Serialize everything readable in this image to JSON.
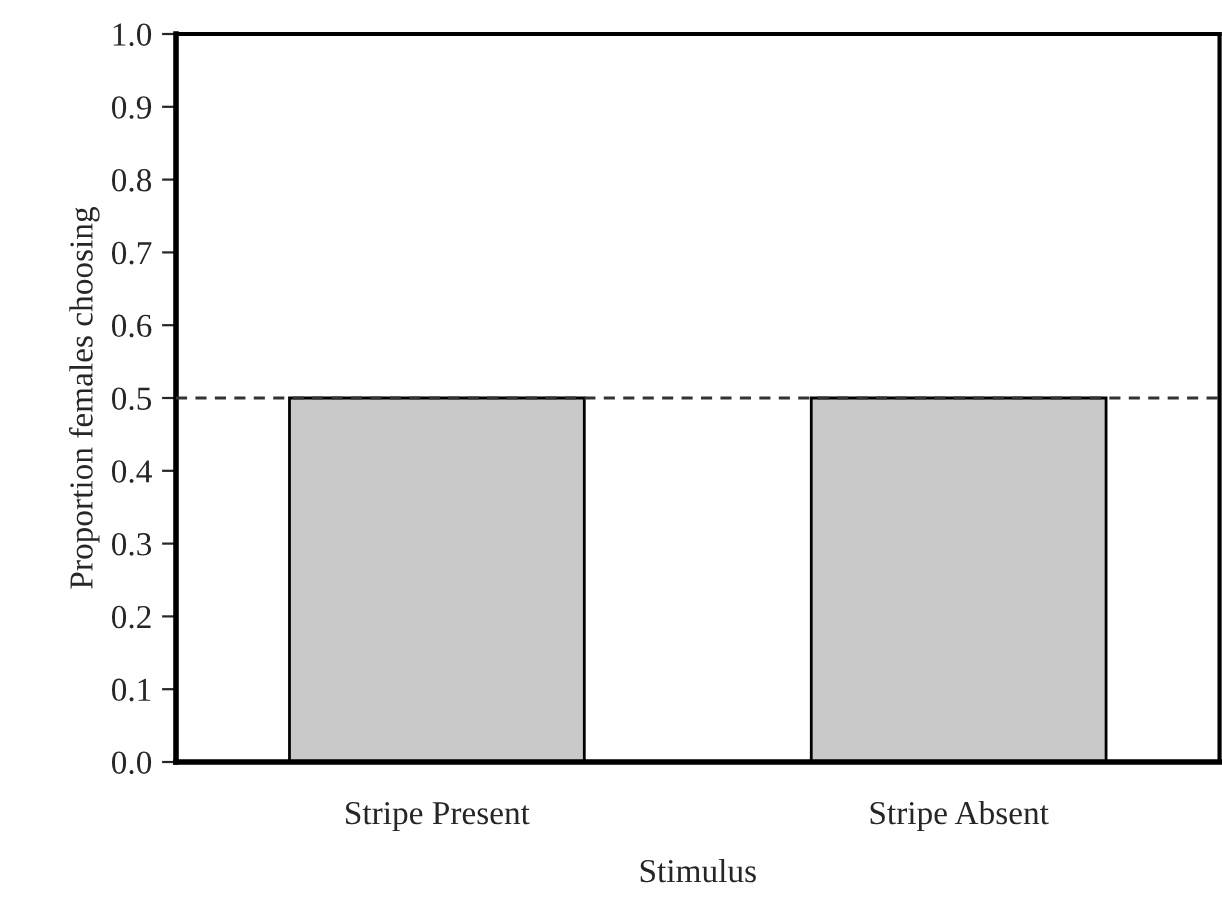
{
  "chart_data": {
    "type": "bar",
    "xlabel": "Stimulus",
    "ylabel": "Proportion females choosing",
    "categories": [
      "Stripe Present",
      "Stripe Absent"
    ],
    "series": [
      {
        "color": "#c8c8c8",
        "values": [
          0.5,
          0.5
        ]
      }
    ],
    "ylim": [
      0,
      1
    ],
    "yticks": [
      "0.0",
      0.1,
      0.2,
      0.3,
      0.4,
      "0.5",
      0.6,
      0.7,
      0.8,
      0.9,
      "1.0"
    ],
    "ref_lines": [
      {
        "axis": "y",
        "value": 0.5,
        "color": "#333333",
        "line_style": "dashed"
      }
    ],
    "grid": false,
    "legend": false
  }
}
